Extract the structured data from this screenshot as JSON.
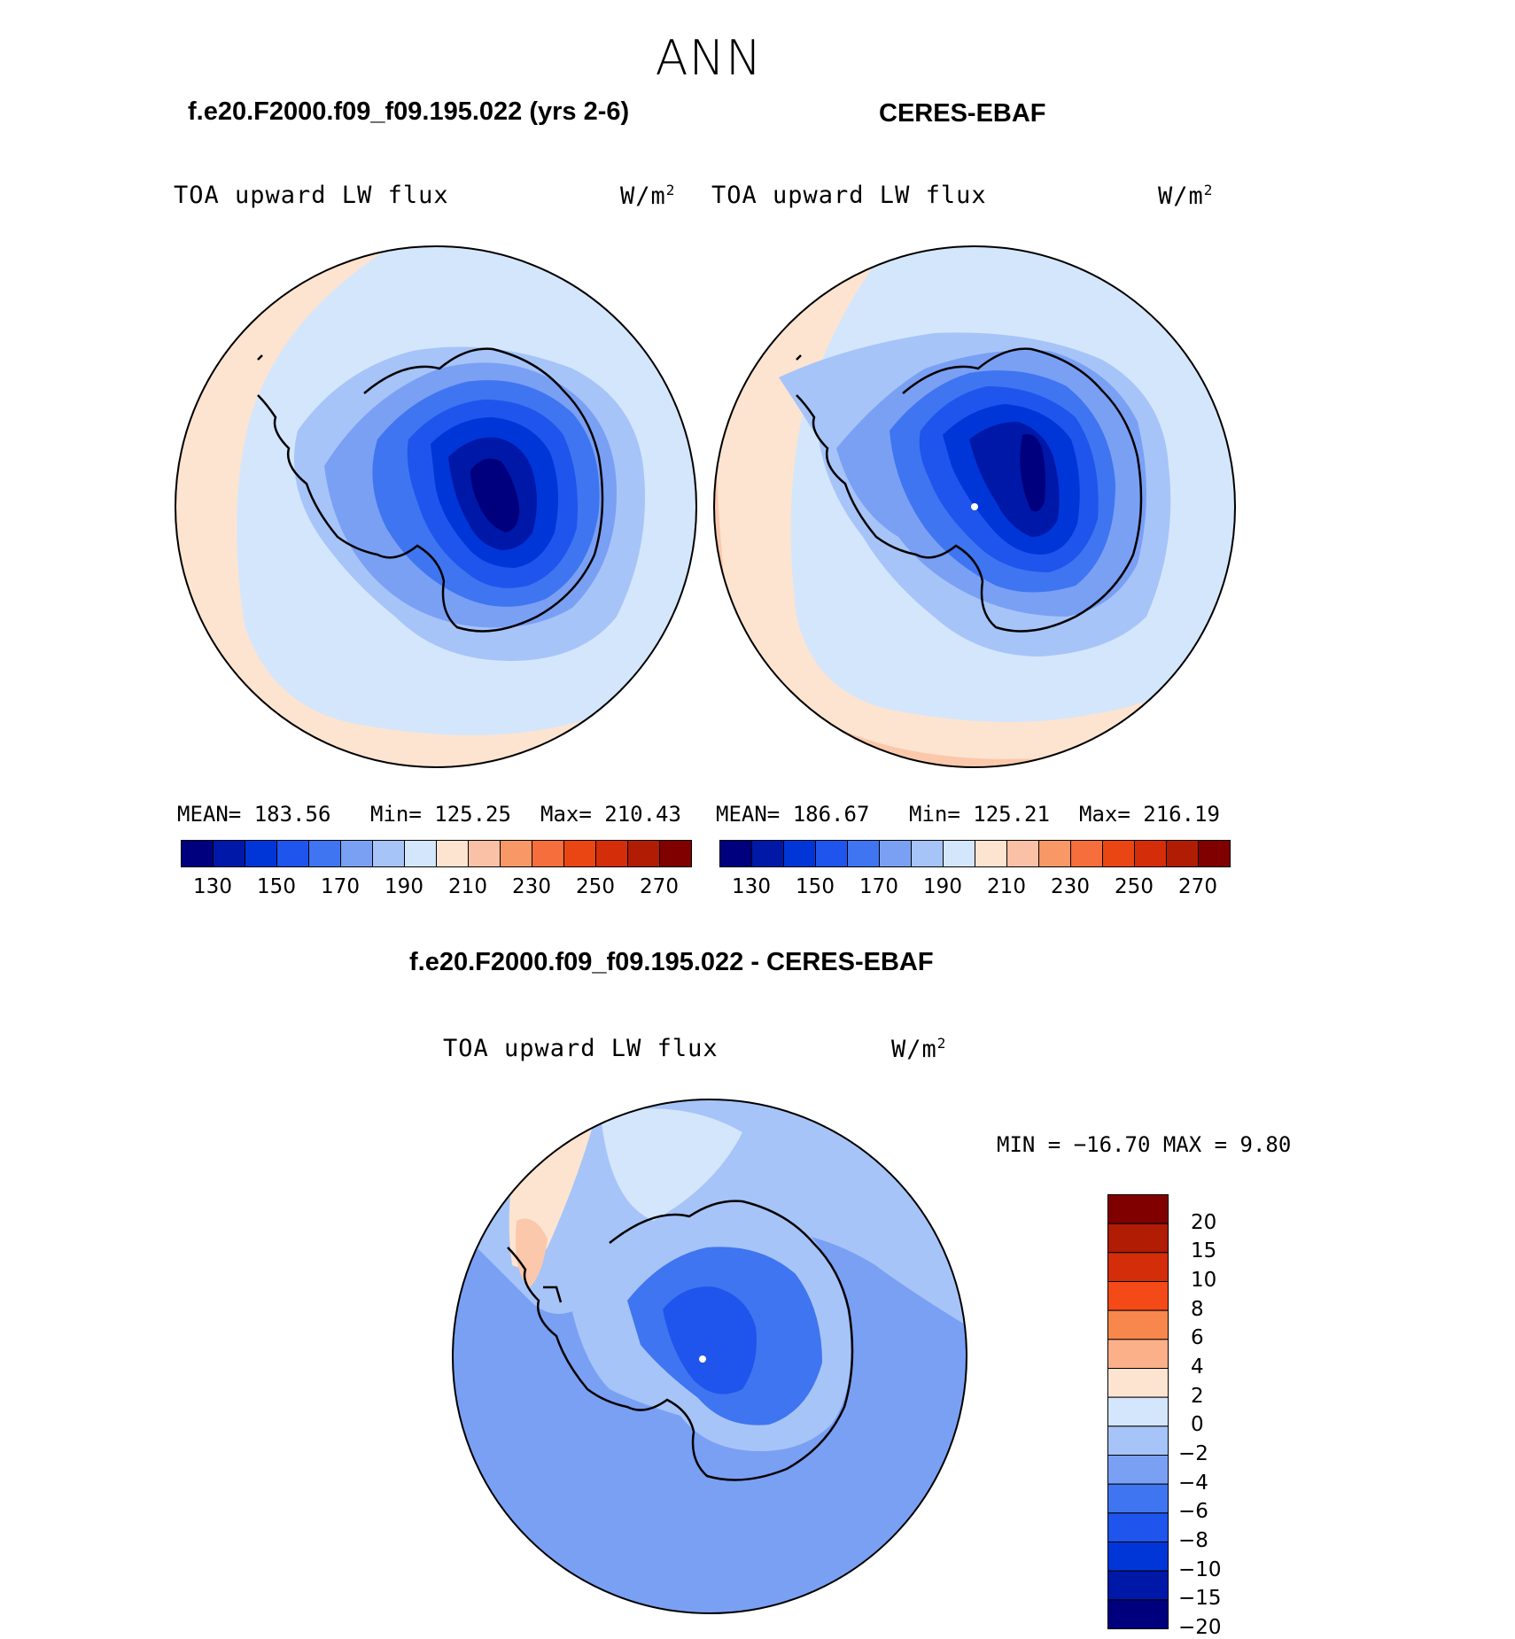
{
  "season": "ANN",
  "panels": [
    {
      "title": "f.e20.F2000.f09_f09.195.022 (yrs 2-6)",
      "variable": "TOA upward LW flux",
      "units": "W/m",
      "units_exp": "2",
      "stats": {
        "mean": "MEAN= 183.56",
        "min": "Min= 125.25",
        "max": "Max= 210.43"
      }
    },
    {
      "title": "CERES-EBAF",
      "variable": "TOA upward LW flux",
      "units": "W/m",
      "units_exp": "2",
      "stats": {
        "mean": "MEAN= 186.67",
        "min": "Min= 125.21",
        "max": "Max= 216.19"
      }
    }
  ],
  "diff_panel": {
    "title": "f.e20.F2000.f09_f09.195.022 - CERES-EBAF",
    "variable": "TOA upward LW flux",
    "units": "W/m",
    "units_exp": "2",
    "minmax": "MIN = −16.70 MAX =   9.80"
  },
  "colorbar": {
    "colors": [
      "#00007f",
      "#0018a8",
      "#0036d8",
      "#1f55ec",
      "#3f75f0",
      "#7aa0f4",
      "#a6c4f8",
      "#d4e6fc",
      "#fde4d0",
      "#fbc1a6",
      "#f79866",
      "#f56e3c",
      "#ea4614",
      "#d42d09",
      "#b01c04",
      "#800000"
    ],
    "ticks": [
      "130",
      "150",
      "170",
      "190",
      "210",
      "230",
      "250",
      "270"
    ]
  },
  "diff_colorbar": {
    "colors": [
      "#800000",
      "#b01c04",
      "#d42d09",
      "#f34a18",
      "#f7874c",
      "#fbb08a",
      "#fde4d0",
      "#d4e6fc",
      "#a6c4f8",
      "#7aa0f4",
      "#3f75f0",
      "#1f55ec",
      "#0036d8",
      "#0018a8",
      "#00007f"
    ],
    "ticks": [
      "20",
      "15",
      "10",
      "8",
      "6",
      "4",
      "2",
      "0",
      "−2",
      "−4",
      "−6",
      "−8",
      "−10",
      "−15",
      "−20"
    ]
  },
  "map_colors": {
    "outer": "#fde4d0",
    "outer2": "#fbc8ac",
    "ocean": "#d4e6fc",
    "shelf": "#a6c4f8",
    "level3": "#7aa0f4",
    "level4": "#3f75f0",
    "level5": "#1f55ec",
    "level6": "#0036d8",
    "level7": "#0018a8",
    "level8": "#00007f"
  }
}
